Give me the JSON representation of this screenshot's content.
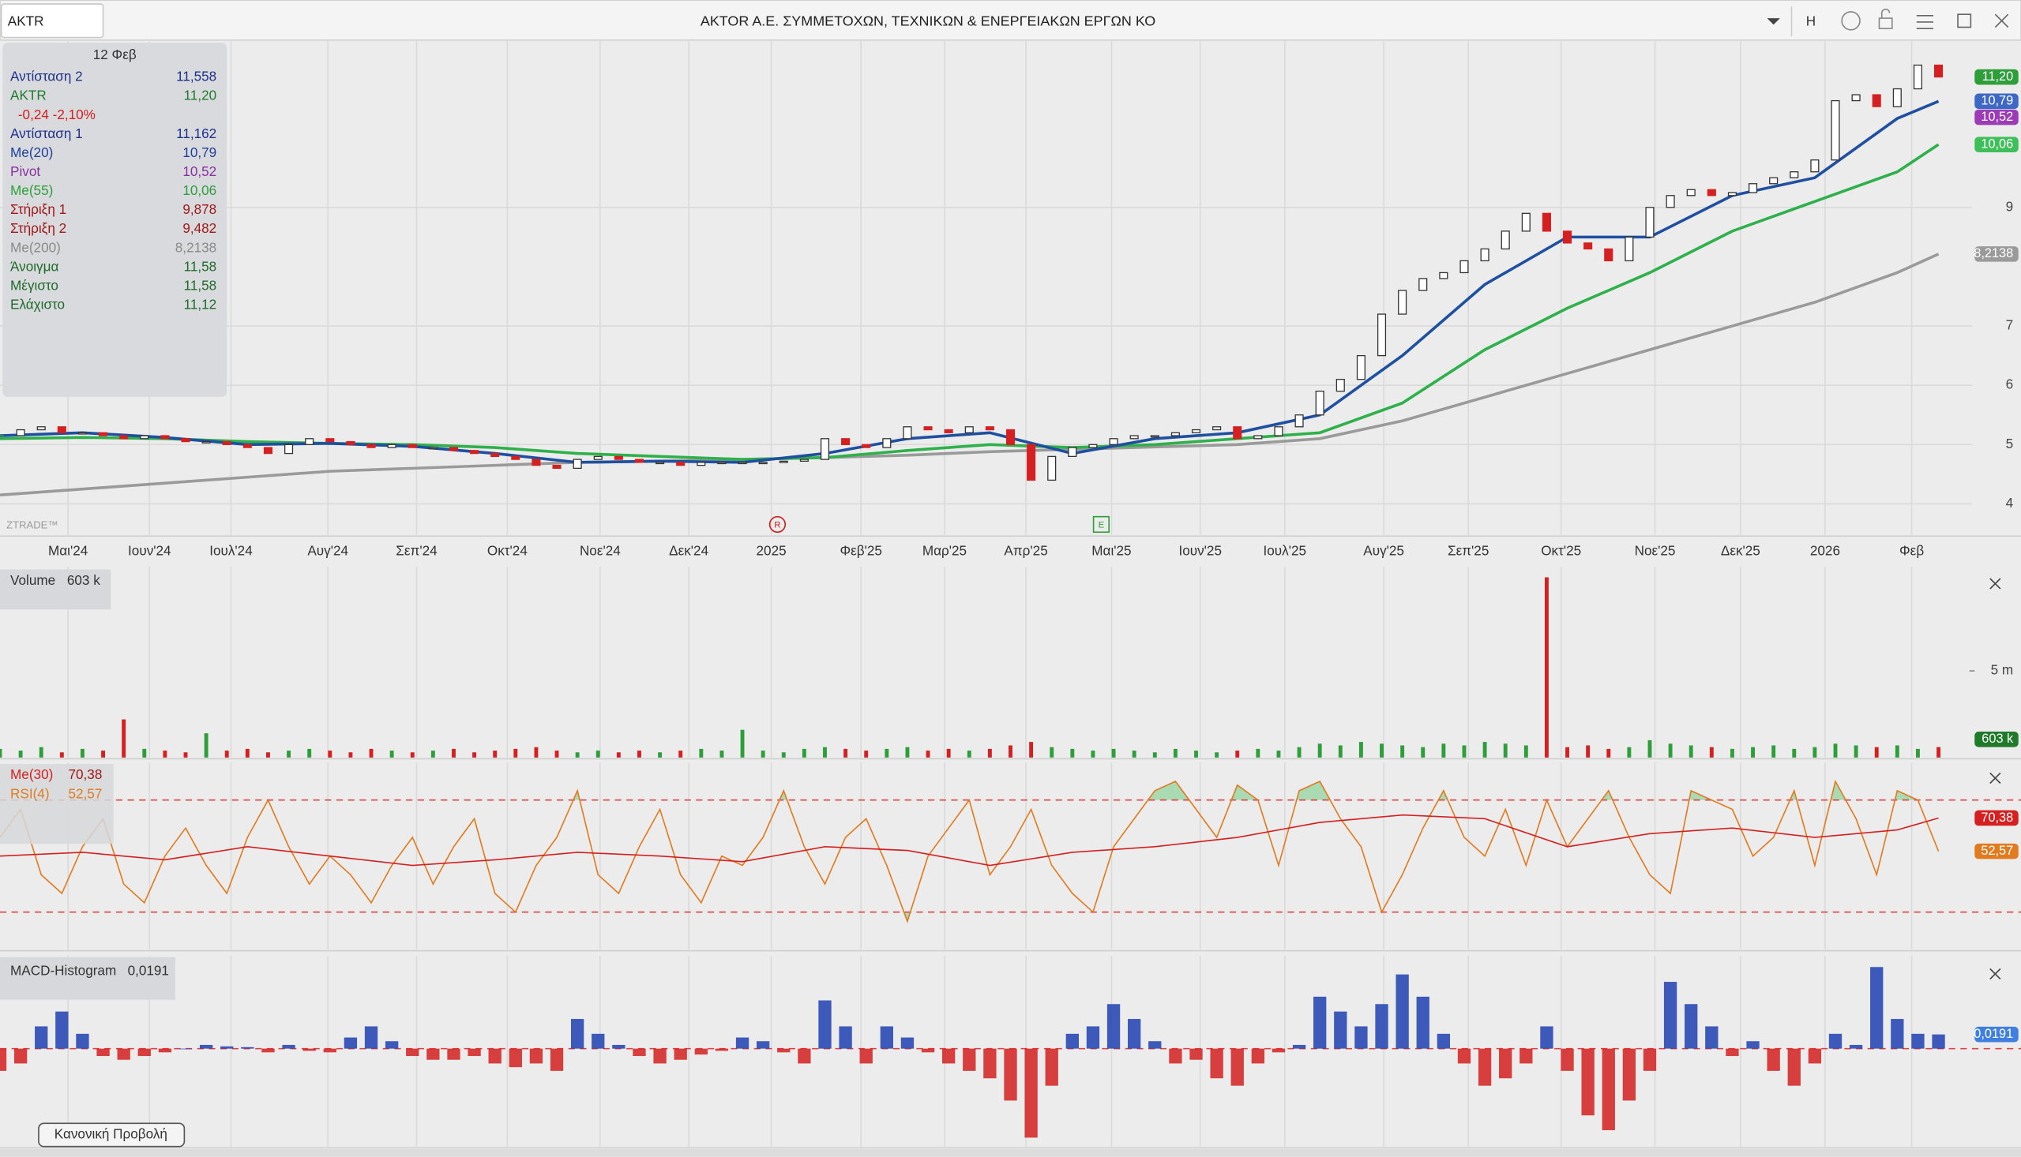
{
  "header": {
    "symbol": "AKTR",
    "title": "AKTOR A.E. ΣΥΜΜΕΤΟΧΩΝ, ΤΕΧΝΙΚΩΝ & ΕΝΕΡΓΕΙΑΚΩΝ ΕΡΓΩΝ ΚΟ",
    "mode": "H"
  },
  "info_panel": {
    "date": "12 Φεβ",
    "rows": [
      {
        "label": "Αντίσταση 2",
        "value": "11,558",
        "color": "#1f2f8a"
      },
      {
        "label": "AKTR",
        "value": "11,20",
        "color": "#1f7a2a"
      },
      {
        "label": "-0,24 -2,10%",
        "color": "#d42020"
      },
      {
        "label": "Αντίσταση 1",
        "value": "11,162",
        "color": "#1f2f8a"
      },
      {
        "label": "Me(20)",
        "value": "10,79",
        "color": "#1f3f9a"
      },
      {
        "label": "Pivot",
        "value": "10,52",
        "color": "#8a2fa0"
      },
      {
        "label": "Me(55)",
        "value": "10,06",
        "color": "#2e9e3a"
      },
      {
        "label": "Στήριξη 1",
        "value": "9,878",
        "color": "#a01818"
      },
      {
        "label": "Στήριξη 2",
        "value": "9,482",
        "color": "#a01818"
      },
      {
        "label": "Me(200)",
        "value": "8,2138",
        "color": "#8a8a8a"
      },
      {
        "label": "Άνοιγμα",
        "value": "11,58",
        "color": "#1f6a2a"
      },
      {
        "label": "Μέγιστο",
        "value": "11,58",
        "color": "#1f6a2a"
      },
      {
        "label": "Ελάχιστο",
        "value": "11,12",
        "color": "#1f6a2a"
      }
    ]
  },
  "price": {
    "xlim": [
      0,
      98
    ],
    "ylim": [
      3.48,
      11.8
    ],
    "yticks": [
      4,
      5,
      6,
      7,
      9
    ],
    "grid": true,
    "xticks": [
      {
        "value": 3.3,
        "label": "Μαι'24"
      },
      {
        "value": 7.25,
        "label": "Ιουν'24"
      },
      {
        "value": 11.2,
        "label": "Ιουλ'24"
      },
      {
        "value": 15.9,
        "label": "Αυγ'24"
      },
      {
        "value": 20.2,
        "label": "Σεπ'24"
      },
      {
        "value": 24.6,
        "label": "Οκτ'24"
      },
      {
        "value": 29.1,
        "label": "Νοε'24"
      },
      {
        "value": 33.4,
        "label": "Δεκ'24"
      },
      {
        "value": 37.4,
        "label": "2025"
      },
      {
        "value": 41.75,
        "label": "Φεβ'25"
      },
      {
        "value": 45.8,
        "label": "Μαρ'25"
      },
      {
        "value": 49.75,
        "label": "Απρ'25"
      },
      {
        "value": 53.9,
        "label": "Μαι'25"
      },
      {
        "value": 58.2,
        "label": "Ιουν'25"
      },
      {
        "value": 62.3,
        "label": "Ιουλ'25"
      },
      {
        "value": 67.1,
        "label": "Αυγ'25"
      },
      {
        "value": 71.2,
        "label": "Σεπ'25"
      },
      {
        "value": 75.7,
        "label": "Οκτ'25"
      },
      {
        "value": 80.25,
        "label": "Νοε'25"
      },
      {
        "value": 84.4,
        "label": "Δεκ'25"
      },
      {
        "value": 88.5,
        "label": "2026"
      },
      {
        "value": 92.7,
        "label": "Φεβ"
      }
    ],
    "closes": [
      5.15,
      5.25,
      5.3,
      5.2,
      5.2,
      5.15,
      5.1,
      5.15,
      5.1,
      5.05,
      5.05,
      5.0,
      4.95,
      4.85,
      5.0,
      5.1,
      5.05,
      5.0,
      4.95,
      5.0,
      4.95,
      4.95,
      4.9,
      4.85,
      4.8,
      4.75,
      4.65,
      4.6,
      4.75,
      4.8,
      4.75,
      4.7,
      4.7,
      4.65,
      4.7,
      4.7,
      4.7,
      4.7,
      4.72,
      4.75,
      5.1,
      5.0,
      4.95,
      5.1,
      5.3,
      5.25,
      5.2,
      5.3,
      5.25,
      5.0,
      4.4,
      4.8,
      4.95,
      5.0,
      5.1,
      5.15,
      5.15,
      5.2,
      5.25,
      5.3,
      5.1,
      5.15,
      5.3,
      5.5,
      5.9,
      6.1,
      6.5,
      7.2,
      7.6,
      7.8,
      7.9,
      8.1,
      8.3,
      8.6,
      8.9,
      8.6,
      8.4,
      8.3,
      8.1,
      8.5,
      9.0,
      9.2,
      9.3,
      9.2,
      9.25,
      9.4,
      9.5,
      9.6,
      9.8,
      10.8,
      10.9,
      10.7,
      11.0,
      11.4,
      11.2
    ],
    "up_color": "#2e9e3a",
    "down_color": "#d42020",
    "ma_x": [
      0,
      4,
      8,
      12,
      16,
      20,
      24,
      28,
      32,
      36,
      40,
      44,
      48,
      52,
      56,
      60,
      64,
      68,
      72,
      76,
      80,
      84,
      88,
      92,
      94
    ],
    "series": [
      {
        "name": "Me(200)",
        "color": "#9a9a9a",
        "values": [
          4.15,
          4.25,
          4.35,
          4.45,
          4.55,
          4.6,
          4.65,
          4.7,
          4.72,
          4.75,
          4.78,
          4.82,
          4.88,
          4.92,
          4.96,
          5.0,
          5.1,
          5.4,
          5.8,
          6.2,
          6.6,
          7.0,
          7.4,
          7.9,
          8.2138
        ]
      },
      {
        "name": "Me(55)",
        "color": "#2eb04a",
        "values": [
          5.1,
          5.12,
          5.1,
          5.05,
          5.02,
          5.0,
          4.95,
          4.85,
          4.8,
          4.75,
          4.78,
          4.9,
          5.0,
          4.95,
          5.0,
          5.1,
          5.2,
          5.7,
          6.6,
          7.3,
          7.9,
          8.6,
          9.1,
          9.6,
          10.06
        ]
      },
      {
        "name": "Me(20)",
        "color": "#1f4fa0",
        "values": [
          5.15,
          5.2,
          5.12,
          5.0,
          5.02,
          4.97,
          4.85,
          4.7,
          4.72,
          4.7,
          4.85,
          5.1,
          5.2,
          4.85,
          5.1,
          5.2,
          5.5,
          6.5,
          7.7,
          8.5,
          8.5,
          9.2,
          9.5,
          10.5,
          10.79
        ]
      }
    ],
    "badges": [
      {
        "value": 11.2,
        "label": "11,20",
        "color": "#2e9e3a"
      },
      {
        "value": 10.79,
        "label": "10,79",
        "color": "#3f67c4"
      },
      {
        "value": 10.52,
        "label": "10,52",
        "color": "#9b3bb5"
      },
      {
        "value": 10.06,
        "label": "10,06",
        "color": "#3fbf5a"
      },
      {
        "value": 8.2138,
        "label": "8,2138",
        "color": "#9a9a9a"
      }
    ],
    "watermark": "ZTRADE™",
    "events": [
      {
        "x": 37.7,
        "label": "R",
        "color": "#c82020"
      },
      {
        "x": 53.4,
        "label": "E",
        "color": "#2e9e3a"
      }
    ]
  },
  "volume": {
    "title": "Volume",
    "last": "603 k",
    "ylim": [
      0,
      11
    ],
    "yticks": [
      {
        "value": 5,
        "label": "5 m"
      }
    ],
    "values": [
      0.5,
      0.4,
      0.6,
      0.3,
      0.5,
      0.4,
      2.2,
      0.5,
      0.4,
      0.3,
      1.4,
      0.4,
      0.5,
      0.3,
      0.4,
      0.5,
      0.4,
      0.3,
      0.5,
      0.4,
      0.3,
      0.4,
      0.5,
      0.3,
      0.4,
      0.5,
      0.6,
      0.4,
      0.3,
      0.4,
      0.3,
      0.4,
      0.3,
      0.4,
      0.5,
      0.4,
      1.6,
      0.4,
      0.3,
      0.5,
      0.6,
      0.5,
      0.4,
      0.5,
      0.6,
      0.4,
      0.5,
      0.4,
      0.5,
      0.7,
      0.9,
      0.6,
      0.5,
      0.4,
      0.5,
      0.4,
      0.3,
      0.5,
      0.4,
      0.3,
      0.4,
      0.5,
      0.4,
      0.6,
      0.8,
      0.7,
      0.9,
      0.8,
      0.7,
      0.6,
      0.8,
      0.7,
      0.9,
      0.8,
      0.7,
      10.4,
      0.6,
      0.7,
      0.5,
      0.6,
      1.0,
      0.8,
      0.7,
      0.6,
      0.5,
      0.6,
      0.7,
      0.5,
      0.6,
      0.8,
      0.7,
      0.6,
      0.7,
      0.5,
      0.603
    ],
    "badge": {
      "value": 0.603,
      "label": "603 k",
      "color": "#1f7a2a"
    }
  },
  "rsi": {
    "ma_title": "Me(30)",
    "ma_last": "70,38",
    "title": "RSI(4)",
    "last": "52,57",
    "ylim": [
      0,
      100
    ],
    "levels": [
      80,
      20
    ],
    "color": "#e07b20",
    "ma_color": "#d42020",
    "fill_color": "#7fcf8a",
    "values": [
      60,
      75,
      40,
      30,
      55,
      70,
      35,
      25,
      50,
      65,
      45,
      30,
      60,
      80,
      55,
      35,
      50,
      40,
      25,
      45,
      60,
      35,
      55,
      70,
      30,
      20,
      45,
      60,
      85,
      40,
      30,
      55,
      75,
      40,
      25,
      50,
      45,
      60,
      85,
      55,
      35,
      60,
      70,
      45,
      15,
      50,
      65,
      80,
      40,
      55,
      75,
      45,
      30,
      20,
      55,
      70,
      85,
      90,
      75,
      60,
      88,
      80,
      45,
      85,
      90,
      70,
      55,
      20,
      40,
      65,
      85,
      60,
      50,
      75,
      45,
      80,
      55,
      70,
      85,
      60,
      40,
      30,
      85,
      80,
      75,
      50,
      60,
      85,
      45,
      90,
      70,
      40,
      85,
      80,
      52.57
    ],
    "ma_values": [
      50,
      52,
      48,
      55,
      50,
      45,
      48,
      52,
      50,
      47,
      55,
      53,
      45,
      52,
      55,
      60,
      68,
      72,
      70,
      55,
      62,
      65,
      60,
      64,
      70.38
    ],
    "badges": [
      {
        "value": 70.38,
        "label": "70,38",
        "color": "#d42020"
      },
      {
        "value": 52.57,
        "label": "52,57",
        "color": "#e07b20"
      }
    ]
  },
  "macd": {
    "title": "MACD-Histogram",
    "last": "0,0191",
    "ylim": [
      -0.132,
      0.125
    ],
    "up_color": "#1f3fb0",
    "down_color": "#d42020",
    "values": [
      -0.03,
      -0.02,
      0.03,
      0.05,
      0.02,
      -0.01,
      -0.015,
      -0.01,
      -0.005,
      0,
      0.005,
      0.003,
      0.002,
      -0.005,
      0.005,
      -0.003,
      -0.005,
      0.015,
      0.03,
      0.01,
      -0.01,
      -0.015,
      -0.015,
      -0.01,
      -0.02,
      -0.025,
      -0.02,
      -0.03,
      0.04,
      0.02,
      0.005,
      -0.01,
      -0.02,
      -0.015,
      -0.008,
      -0.003,
      0.015,
      0.01,
      -0.005,
      -0.02,
      0.065,
      0.03,
      -0.02,
      0.03,
      0.015,
      -0.005,
      -0.02,
      -0.03,
      -0.04,
      -0.07,
      -0.12,
      -0.05,
      0.02,
      0.03,
      0.06,
      0.04,
      0.01,
      -0.02,
      -0.015,
      -0.04,
      -0.05,
      -0.02,
      -0.005,
      0.005,
      0.07,
      0.05,
      0.03,
      0.06,
      0.1,
      0.07,
      0.02,
      -0.02,
      -0.05,
      -0.04,
      -0.02,
      0.03,
      -0.03,
      -0.09,
      -0.11,
      -0.07,
      -0.03,
      0.09,
      0.06,
      0.03,
      -0.01,
      0.01,
      -0.03,
      -0.05,
      -0.02,
      0.02,
      0.005,
      0.11,
      0.04,
      0.02,
      0.0191
    ],
    "badge": {
      "value": 0.0191,
      "label": "0,0191",
      "color": "#3f7fe0"
    }
  },
  "footer": {
    "button": "Κανονική Προβολή"
  }
}
